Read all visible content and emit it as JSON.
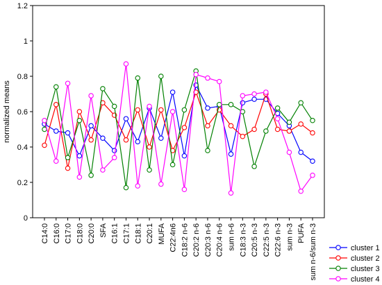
{
  "chart_data": {
    "type": "line",
    "ylabel": "normalized means",
    "xlabel": "",
    "ylim": [
      0,
      1.2
    ],
    "yticks": [
      "0",
      "0.2",
      "0.4",
      "0.6",
      "0.8",
      "1",
      "1.2"
    ],
    "grid": false,
    "legend_position": "bottom-right",
    "categories": [
      "C14:0",
      "C16:0",
      "C17:0",
      "C18:0",
      "C20:0",
      "SFA",
      "C16:1",
      "C17:1",
      "C18:1",
      "C20:1",
      "MUFA",
      "C22:4n6",
      "C18:2 n-6",
      "C20:2 n-6",
      "C20:3 n-6",
      "C20:4 n-6",
      "sum n-6",
      "C18:3 n-3",
      "C20:5 n-3",
      "C22:5 n-3",
      "C22:6 n-3",
      "sum n-3",
      "PUFA",
      "sum n-6/sum n-3"
    ],
    "series": [
      {
        "name": "cluster 1",
        "color": "#0000ff",
        "values": [
          0.53,
          0.49,
          0.48,
          0.35,
          0.52,
          0.45,
          0.38,
          0.56,
          0.43,
          0.62,
          0.45,
          0.71,
          0.35,
          0.75,
          0.62,
          0.63,
          0.36,
          0.65,
          0.67,
          0.67,
          0.59,
          0.52,
          0.37,
          0.32
        ]
      },
      {
        "name": "cluster 2",
        "color": "#ff0000",
        "values": [
          0.41,
          0.64,
          0.28,
          0.6,
          0.44,
          0.65,
          0.58,
          0.44,
          0.61,
          0.4,
          0.61,
          0.38,
          0.51,
          0.71,
          0.52,
          0.61,
          0.52,
          0.46,
          0.5,
          0.7,
          0.5,
          0.49,
          0.53,
          0.48
        ]
      },
      {
        "name": "cluster 3",
        "color": "#008000",
        "values": [
          0.5,
          0.74,
          0.34,
          0.55,
          0.24,
          0.73,
          0.63,
          0.17,
          0.79,
          0.27,
          0.8,
          0.3,
          0.61,
          0.83,
          0.38,
          0.64,
          0.64,
          0.6,
          0.29,
          0.49,
          0.62,
          0.54,
          0.65,
          0.55
        ]
      },
      {
        "name": "cluster 4",
        "color": "#ff00ff",
        "values": [
          0.55,
          0.32,
          0.76,
          0.23,
          0.69,
          0.27,
          0.34,
          0.87,
          0.18,
          0.63,
          0.19,
          0.6,
          0.16,
          0.81,
          0.79,
          0.77,
          0.14,
          0.69,
          0.7,
          0.71,
          0.56,
          0.37,
          0.15,
          0.24
        ]
      }
    ]
  }
}
